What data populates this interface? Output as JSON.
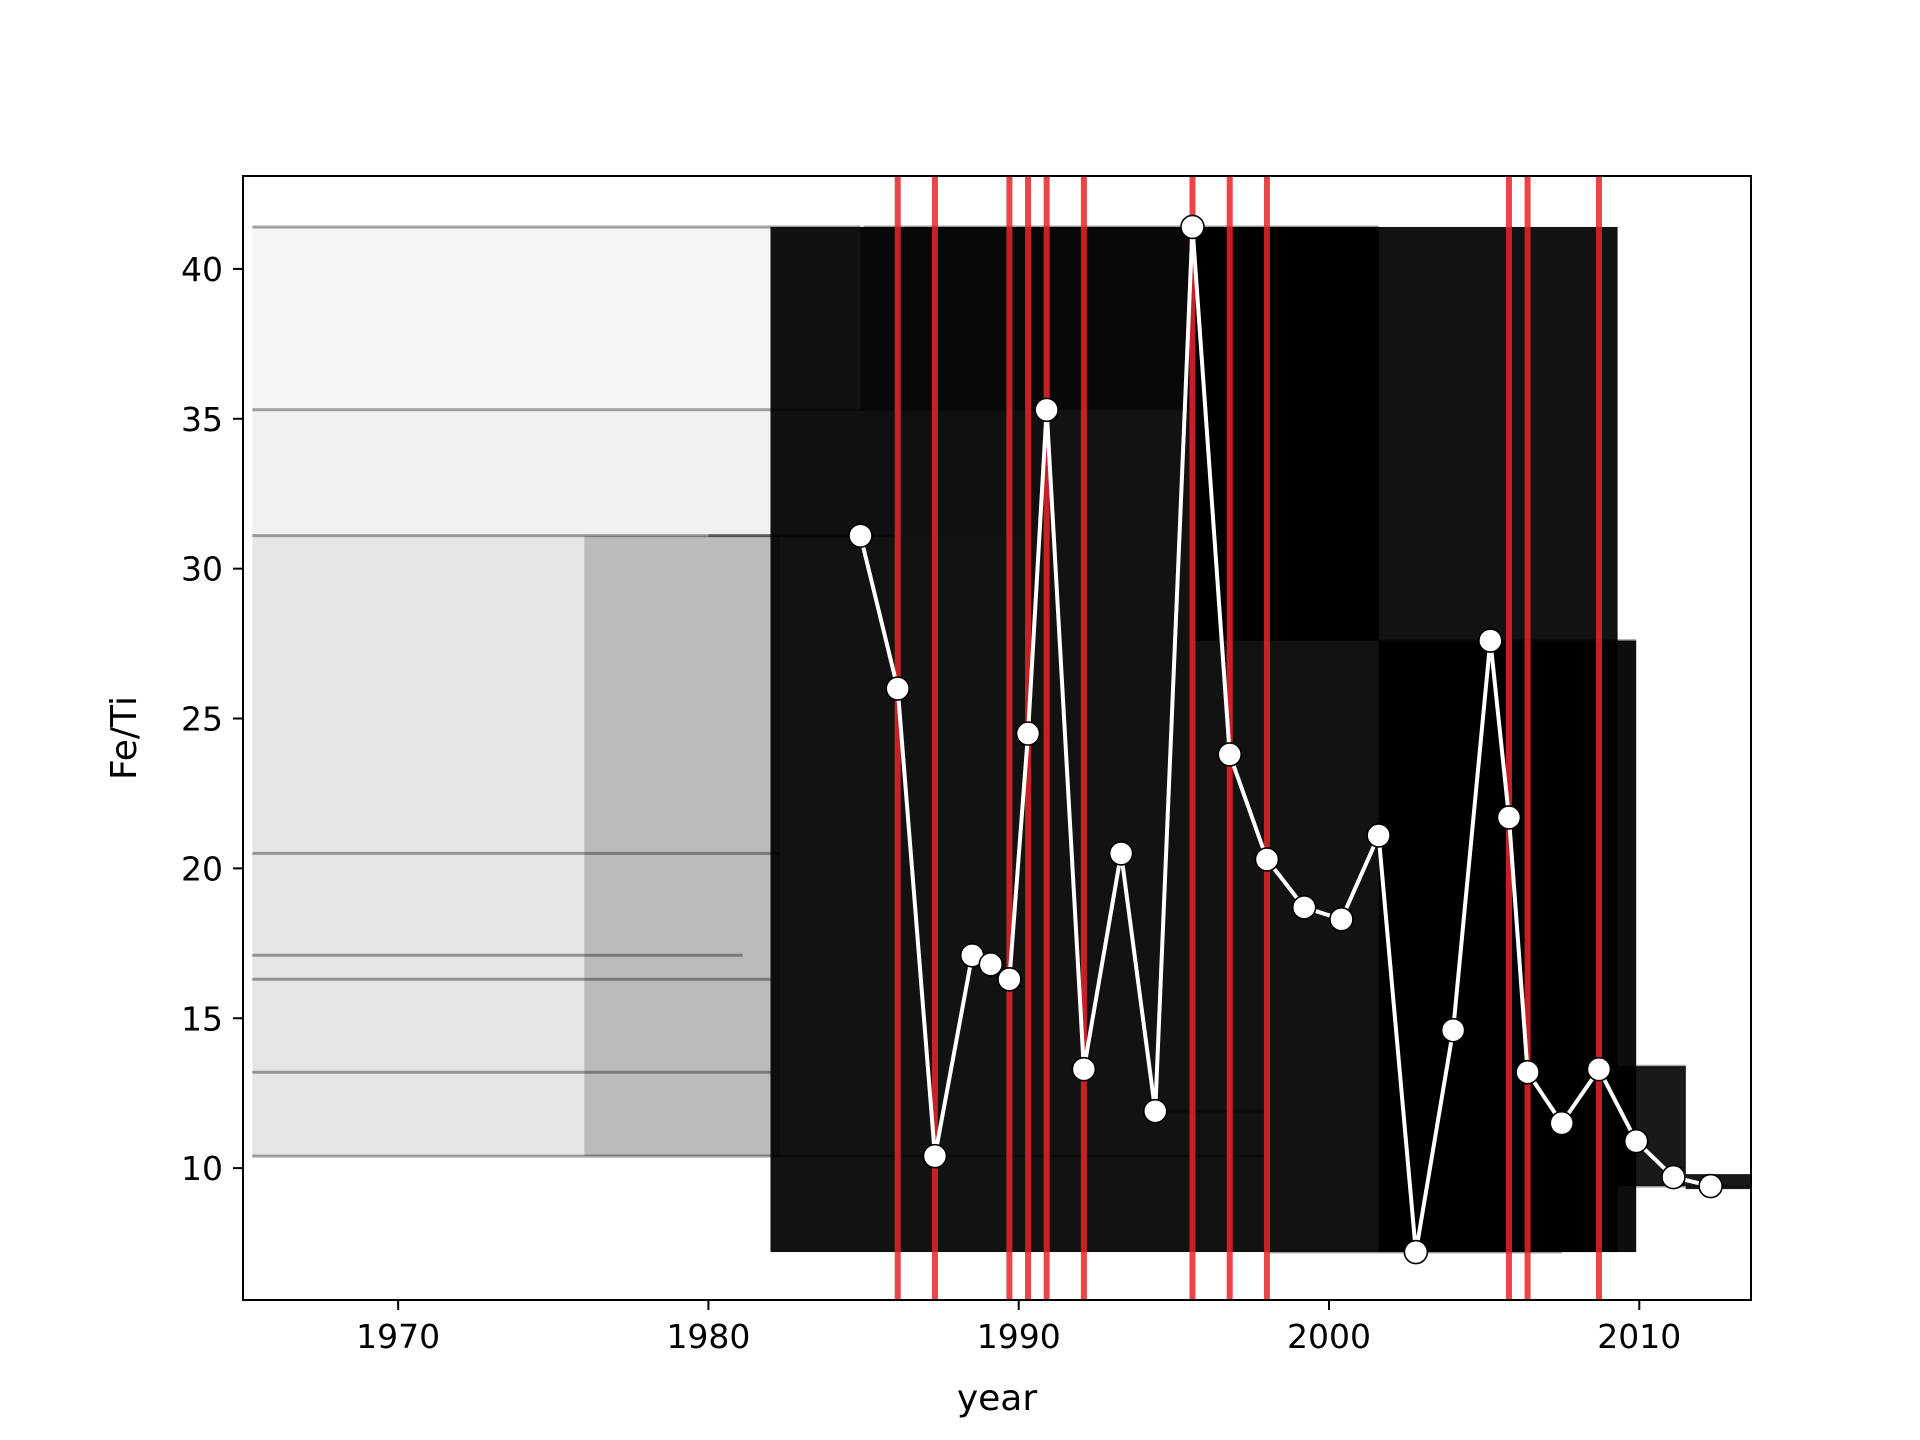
{
  "chart_data": {
    "type": "line",
    "xlabel": "year",
    "ylabel": "Fe/Ti",
    "xlim": [
      1965,
      2013.6
    ],
    "ylim": [
      5.6,
      43.1
    ],
    "x_ticks": [
      1970,
      1980,
      1990,
      2000,
      2010
    ],
    "y_ticks": [
      10,
      15,
      20,
      25,
      30,
      35,
      40
    ],
    "grid": false,
    "legend": "none",
    "series": [
      {
        "color": "#ffffff",
        "marker": "circle",
        "points": [
          [
            1984.9,
            31.1
          ],
          [
            1986.1,
            26.0
          ],
          [
            1987.3,
            10.4
          ],
          [
            1988.5,
            17.1
          ],
          [
            1989.1,
            16.8
          ],
          [
            1989.7,
            16.3
          ],
          [
            1990.3,
            24.5
          ],
          [
            1990.9,
            35.3
          ],
          [
            1992.1,
            13.3
          ],
          [
            1993.3,
            20.5
          ],
          [
            1994.4,
            11.9
          ],
          [
            1995.6,
            41.4
          ],
          [
            1996.8,
            23.8
          ],
          [
            1998.0,
            20.3
          ],
          [
            1999.2,
            18.7
          ],
          [
            2000.4,
            18.3
          ],
          [
            2001.6,
            21.1
          ],
          [
            2002.8,
            7.2
          ],
          [
            2004.0,
            14.6
          ],
          [
            2005.2,
            27.6
          ],
          [
            2005.8,
            21.7
          ],
          [
            2006.4,
            13.2
          ],
          [
            2007.5,
            11.5
          ],
          [
            2008.7,
            13.3
          ],
          [
            2009.9,
            10.9
          ],
          [
            2011.1,
            9.7
          ],
          [
            2012.3,
            9.4
          ]
        ]
      }
    ],
    "vertical_lines": {
      "color": "#e8242a",
      "x": [
        1986.1,
        1987.3,
        1989.7,
        1990.3,
        1990.9,
        1992.1,
        1995.6,
        1996.8,
        1998.0,
        2005.8,
        2006.4,
        2008.7
      ]
    },
    "background_traces": {
      "color": "#000000",
      "steps": [
        [
          1965.3,
          1984.9,
          41.4
        ],
        [
          1985.0,
          2001.6,
          41.4
        ],
        [
          1965.3,
          1990.9,
          35.3
        ],
        [
          1965.3,
          1985.0,
          31.1
        ],
        [
          1980.0,
          1986.0,
          31.1
        ],
        [
          1965.3,
          1982.3,
          20.5
        ],
        [
          1965.3,
          1981.1,
          17.1
        ],
        [
          1965.3,
          1982.0,
          16.3
        ],
        [
          1965.3,
          1982.0,
          13.2
        ],
        [
          1965.3,
          1987.3,
          10.4
        ],
        [
          1987.3,
          1998.0,
          10.4
        ],
        [
          1994.4,
          1998.0,
          11.9
        ],
        [
          2001.6,
          2009.9,
          27.6
        ],
        [
          1998.0,
          2007.5,
          7.2
        ],
        [
          2006.4,
          2009.8,
          9.6
        ],
        [
          2008.7,
          2011.5,
          13.4
        ],
        [
          2009.9,
          2013.6,
          9.4
        ]
      ],
      "block_x": [
        1982.0,
        2009.3
      ],
      "block_y": [
        7.2,
        41.4
      ]
    }
  }
}
